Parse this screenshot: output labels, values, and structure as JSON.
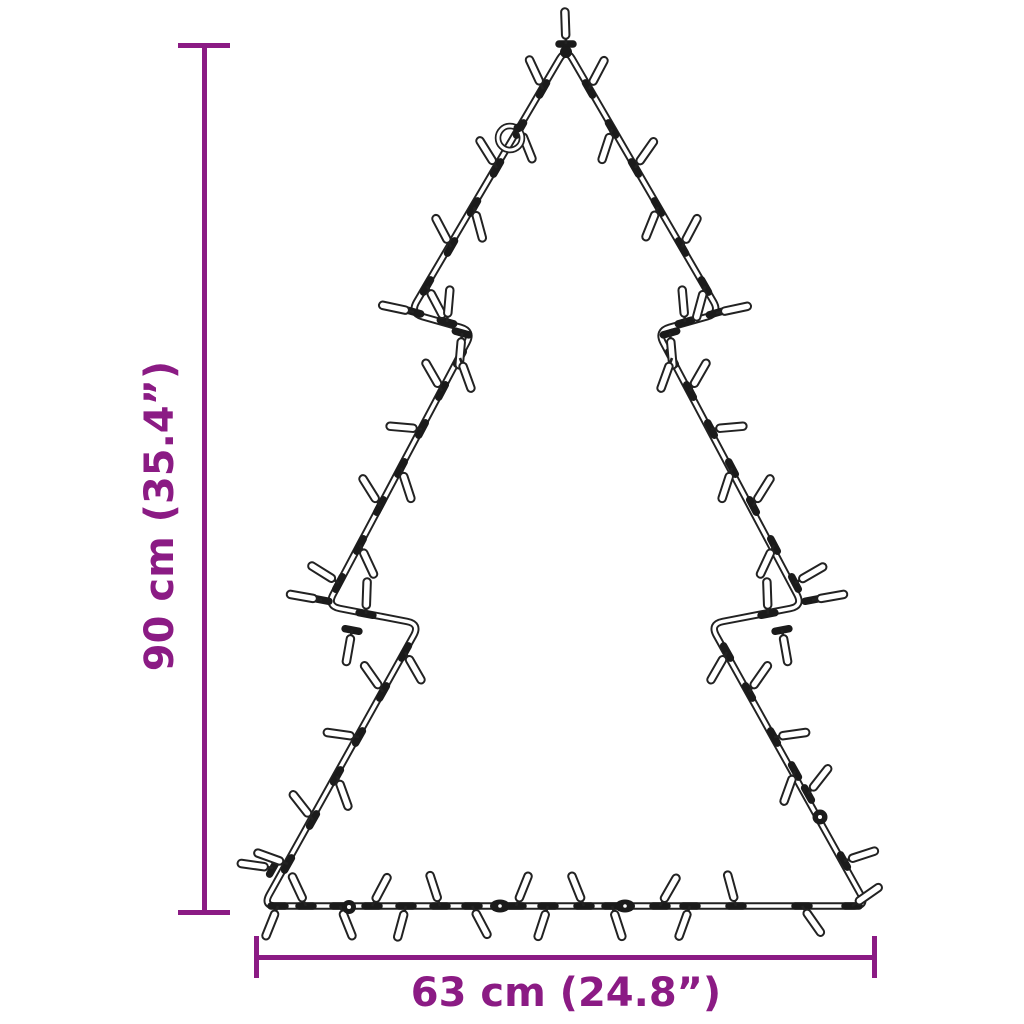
{
  "colors": {
    "accent": "#8B1B84",
    "outline": "#222222",
    "background": "#ffffff"
  },
  "illustration": {
    "name": "christmas-tree-light-figure",
    "tiers": 3,
    "features": [
      "wire-tube-outline",
      "light-bulbs",
      "hanging-ring",
      "cable-connectors"
    ]
  },
  "dimensions": {
    "height_label": "90 cm (35.4”)",
    "width_label": "63 cm (24.8”)"
  }
}
